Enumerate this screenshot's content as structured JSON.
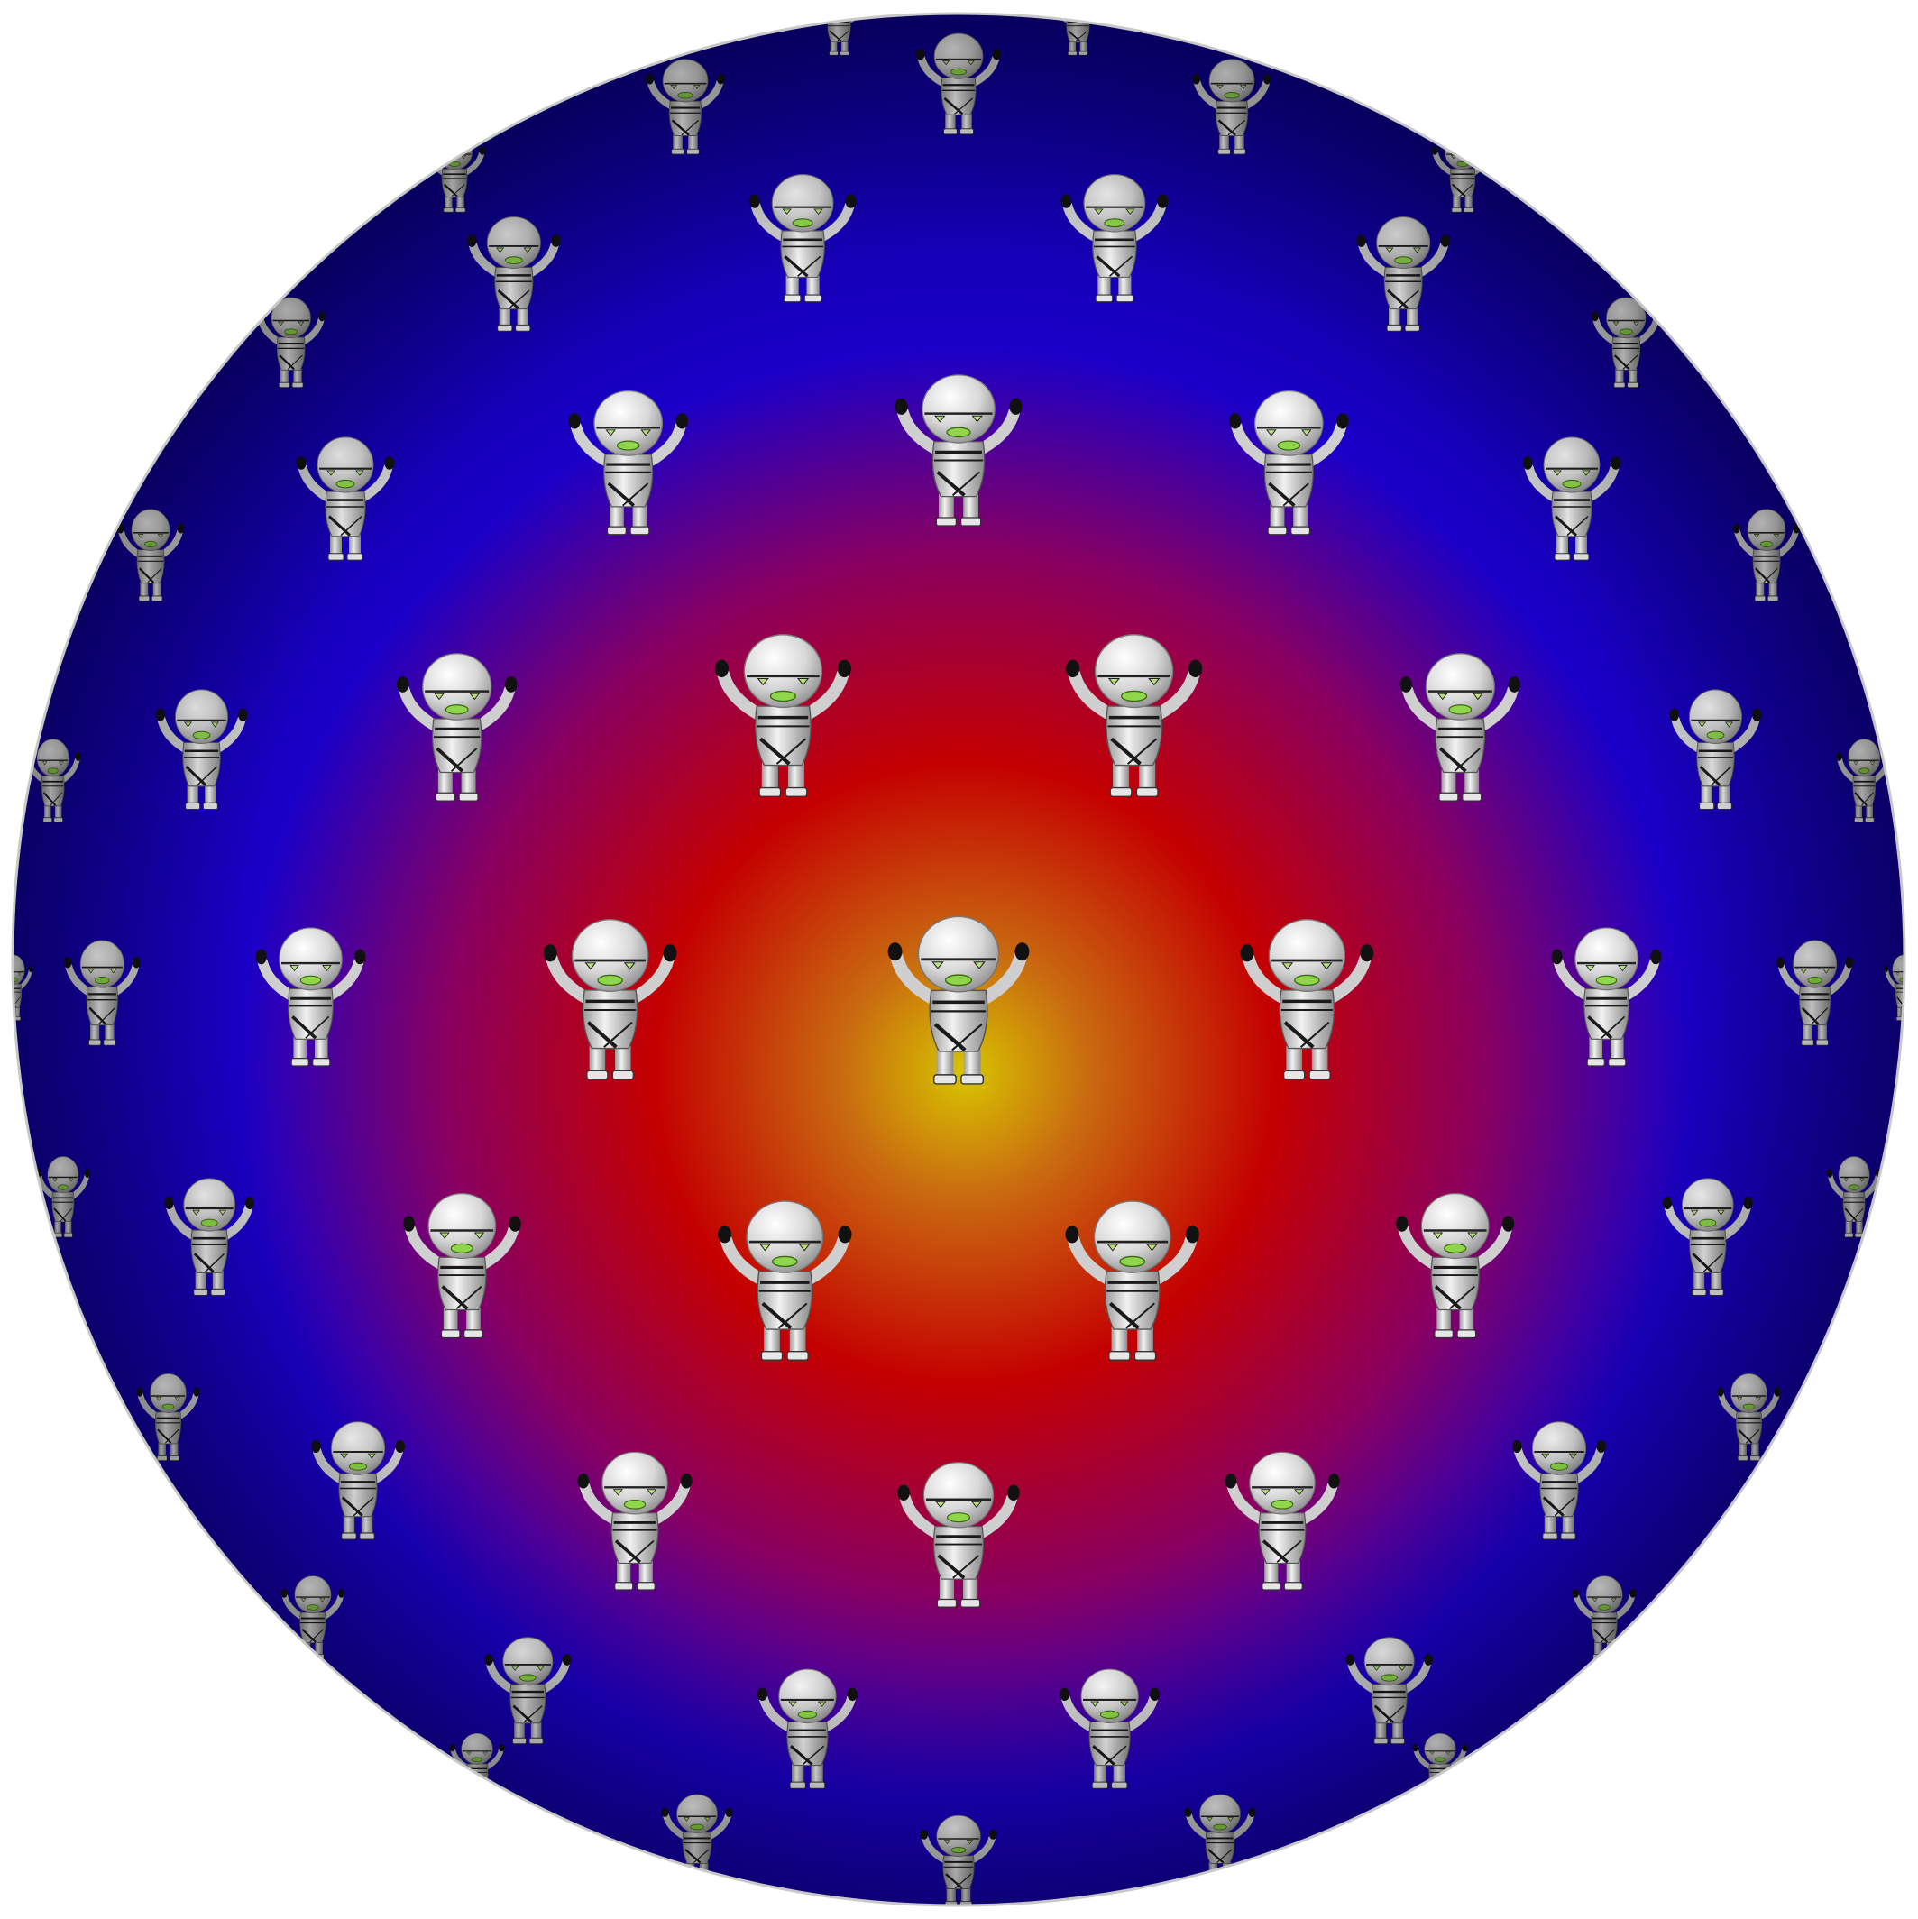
{
  "scene": {
    "background_color": "#ffffff",
    "subject": "sphere",
    "pattern_motif": "robot-figure",
    "gradient_colors": {
      "core": "#d7c400",
      "inner": "#c96a10",
      "mid": "#c40000",
      "outer_mid": "#8a0060",
      "outer": "#1a00c8",
      "edge": "#0c0090"
    },
    "robot_colors": {
      "body": "#dcdcdc",
      "body_shadow": "#9a9a9a",
      "stripe": "#1a1a1a",
      "mouth": "#8fd64a",
      "eye": "#b6e07a",
      "hand": "#111111"
    }
  }
}
